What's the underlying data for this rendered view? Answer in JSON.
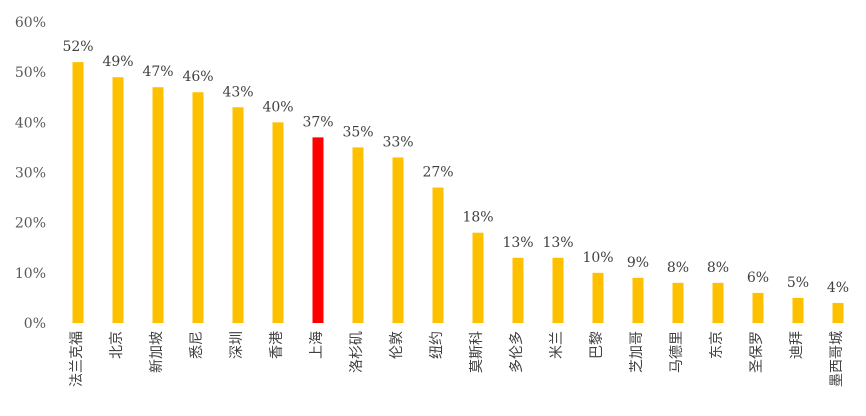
{
  "chart_data": {
    "type": "bar",
    "title": "",
    "xlabel": "",
    "ylabel": "",
    "ylim": [
      0,
      60
    ],
    "yticks": [
      "0%",
      "10%",
      "20%",
      "30%",
      "40%",
      "50%",
      "60%"
    ],
    "categories": [
      "法兰克福",
      "北京",
      "新加坡",
      "悉尼",
      "深圳",
      "香港",
      "上海",
      "洛杉矶",
      "伦敦",
      "纽约",
      "莫斯科",
      "多伦多",
      "米兰",
      "巴黎",
      "芝加哥",
      "马德里",
      "东京",
      "圣保罗",
      "迪拜",
      "墨西哥城"
    ],
    "values": [
      52,
      49,
      47,
      46,
      43,
      40,
      37,
      35,
      33,
      27,
      18,
      13,
      13,
      10,
      9,
      8,
      8,
      6,
      5,
      4
    ],
    "value_labels": [
      "52%",
      "49%",
      "47%",
      "46%",
      "43%",
      "40%",
      "37%",
      "35%",
      "33%",
      "27%",
      "18%",
      "13%",
      "13%",
      "10%",
      "9%",
      "8%",
      "8%",
      "6%",
      "5%",
      "4%"
    ],
    "grid": false,
    "legend": "none",
    "colors": {
      "default_bar": "#FFC000",
      "highlight_bar": "#FF0000",
      "highlight_category": "上海"
    }
  }
}
